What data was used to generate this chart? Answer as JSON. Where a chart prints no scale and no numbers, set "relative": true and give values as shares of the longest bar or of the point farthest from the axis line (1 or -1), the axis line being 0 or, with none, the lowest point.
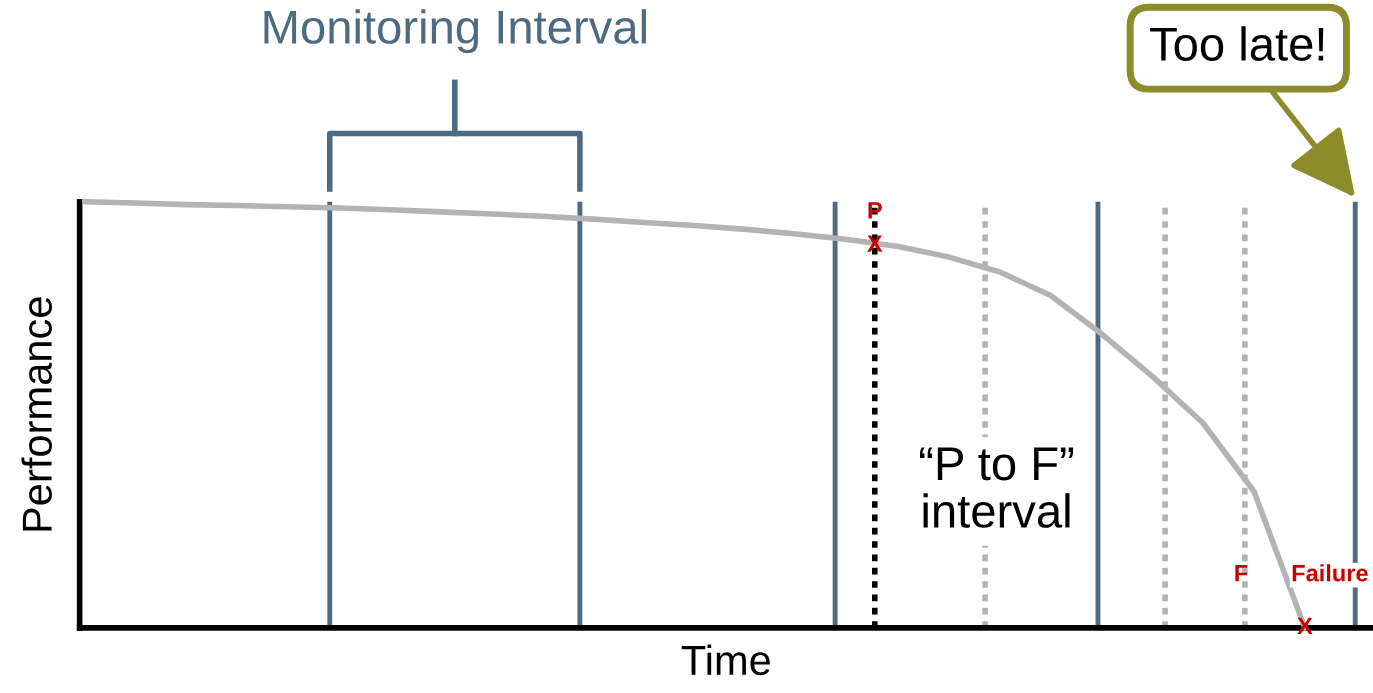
{
  "chart_data": {
    "type": "line",
    "relative": true,
    "xlabel": "Time",
    "ylabel": "Performance",
    "tick_labels": false,
    "legend": false,
    "categories": [
      null,
      null,
      null,
      null,
      null,
      null,
      null,
      null,
      null,
      null,
      null,
      null,
      null,
      null,
      null,
      null,
      null,
      null,
      null,
      null,
      null,
      null,
      null,
      null,
      null
    ],
    "series": [
      {
        "color": "#b3b3b3",
        "values": [
          1.0,
          0.997,
          0.993,
          0.991,
          0.988,
          0.985,
          0.981,
          0.976,
          0.971,
          0.966,
          0.959,
          0.951,
          0.944,
          0.935,
          0.924,
          0.911,
          0.895,
          0.87,
          0.835,
          0.78,
          0.69,
          0.59,
          0.48,
          0.32,
          0.0
        ]
      }
    ],
    "annotations": [
      "Monitoring Interval",
      "Too late!",
      {
        "text": "P",
        "y": 0.897
      },
      {
        "text": "X",
        "y": 0.897
      },
      "F",
      "Failure",
      {
        "text": "X",
        "y": 0.0
      },
      "“P to F”\ninterval"
    ]
  }
}
